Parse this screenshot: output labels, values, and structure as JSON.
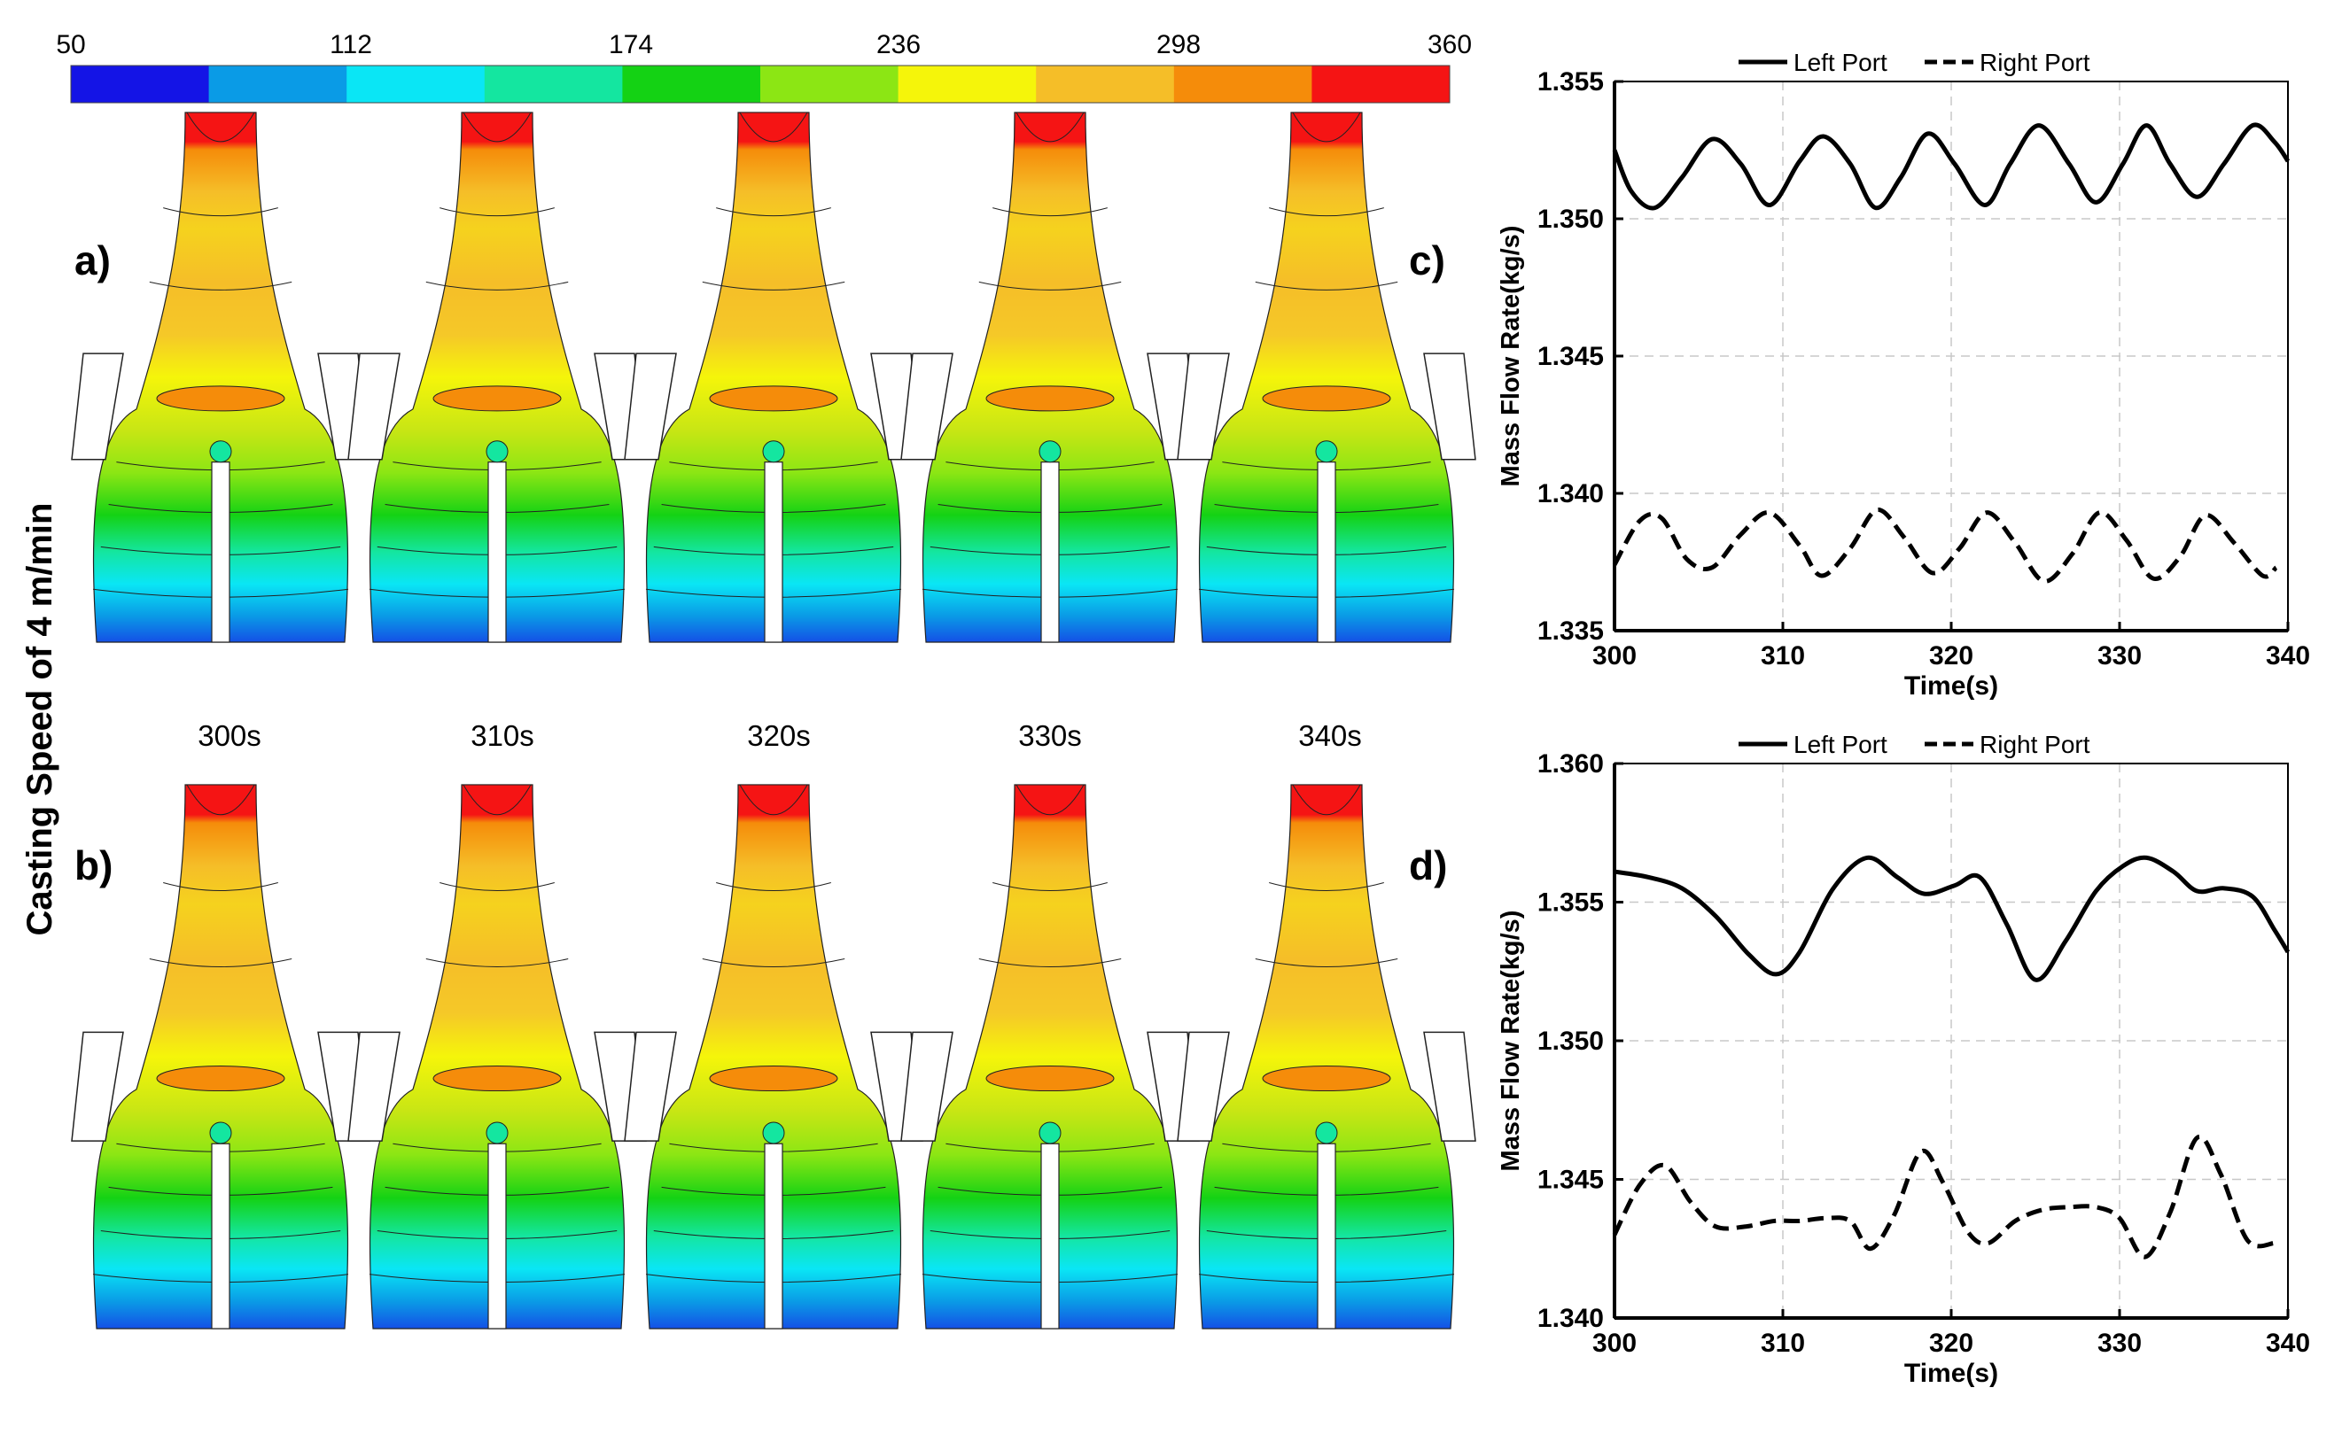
{
  "figure": {
    "side_label": "Casting Speed of 4 m/min",
    "panel_labels": [
      "a)",
      "b)",
      "c)",
      "d)"
    ],
    "time_labels": [
      "300s",
      "310s",
      "320s",
      "330s",
      "340s"
    ]
  },
  "colorbar": {
    "ticks": [
      "50",
      "112",
      "174",
      "236",
      "298",
      "360"
    ],
    "colors": [
      "#1414e6",
      "#0a9be6",
      "#0ae6f5",
      "#14e6a0",
      "#14d214",
      "#8ce614",
      "#f5f50a",
      "#f5be28",
      "#f58c0a",
      "#f51414"
    ]
  },
  "chart_data": [
    {
      "type": "line",
      "panel": "c)",
      "xlabel": "Time(s)",
      "ylabel": "Mass Flow Rate(kg/s)",
      "xlim": [
        300,
        340
      ],
      "ylim": [
        1.335,
        1.355
      ],
      "xticks": [
        300,
        310,
        320,
        330,
        340
      ],
      "yticks": [
        1.335,
        1.34,
        1.345,
        1.35,
        1.355
      ],
      "ytick_labels": [
        "1.335",
        "1.340",
        "1.345",
        "1.350",
        "1.355"
      ],
      "grid": true,
      "legend": "top",
      "series": [
        {
          "name": "Left Port",
          "style": "solid",
          "x": [
            300,
            301,
            302.4,
            304,
            305.8,
            307.5,
            309.2,
            311,
            312.4,
            314,
            315.5,
            317,
            318.6,
            320.2,
            322,
            323.5,
            325.2,
            327,
            328.6,
            330.2,
            331.6,
            333,
            334.6,
            336.2,
            337.9,
            339.2,
            340
          ],
          "y": [
            1.3525,
            1.351,
            1.3504,
            1.3515,
            1.3529,
            1.352,
            1.3505,
            1.3521,
            1.353,
            1.352,
            1.3504,
            1.3515,
            1.3531,
            1.352,
            1.3505,
            1.352,
            1.3534,
            1.352,
            1.3506,
            1.352,
            1.3534,
            1.352,
            1.3508,
            1.352,
            1.3534,
            1.3528,
            1.3521
          ]
        },
        {
          "name": "Right Port",
          "style": "dashed",
          "x": [
            300,
            301.5,
            302.8,
            304.3,
            305.8,
            307.5,
            309.2,
            311,
            312.3,
            314,
            315.6,
            317.2,
            318.9,
            320.5,
            322.1,
            323.8,
            325.5,
            327.2,
            328.8,
            330.4,
            332,
            333.6,
            335.1,
            336.8,
            338.5,
            339.3
          ],
          "y": [
            1.3374,
            1.339,
            1.3391,
            1.3376,
            1.3373,
            1.3385,
            1.3393,
            1.3381,
            1.337,
            1.338,
            1.3394,
            1.3384,
            1.3371,
            1.338,
            1.3393,
            1.3382,
            1.3368,
            1.3378,
            1.3393,
            1.3383,
            1.3369,
            1.3377,
            1.3392,
            1.3382,
            1.337,
            1.3373
          ]
        }
      ]
    },
    {
      "type": "line",
      "panel": "d)",
      "xlabel": "Time(s)",
      "ylabel": "Mass Flow Rate(kg/s)",
      "xlim": [
        300,
        340
      ],
      "ylim": [
        1.34,
        1.36
      ],
      "xticks": [
        300,
        310,
        320,
        330,
        340
      ],
      "yticks": [
        1.34,
        1.345,
        1.35,
        1.355,
        1.36
      ],
      "ytick_labels": [
        "1.340",
        "1.345",
        "1.350",
        "1.355",
        "1.360"
      ],
      "grid": true,
      "legend": "top",
      "series": [
        {
          "name": "Left Port",
          "style": "solid",
          "x": [
            300,
            302,
            304,
            306,
            308,
            309.6,
            311,
            313,
            315,
            316.8,
            318.4,
            320.2,
            321.7,
            323.3,
            325,
            326.8,
            328.6,
            330.2,
            331.6,
            333.2,
            334.6,
            336.2,
            337.9,
            339.2,
            340
          ],
          "y": [
            1.3561,
            1.3559,
            1.3555,
            1.3545,
            1.3531,
            1.3524,
            1.3532,
            1.3555,
            1.3566,
            1.3559,
            1.3553,
            1.3556,
            1.3559,
            1.3542,
            1.3522,
            1.3536,
            1.3554,
            1.3563,
            1.3566,
            1.3561,
            1.3554,
            1.3555,
            1.3552,
            1.354,
            1.3532
          ]
        },
        {
          "name": "Right Port",
          "style": "dashed",
          "x": [
            300,
            301.5,
            303,
            304.5,
            306,
            307.8,
            309.5,
            311,
            312.5,
            314,
            315.2,
            316.6,
            318.2,
            319.5,
            321,
            322.2,
            323.8,
            325.4,
            327,
            328.6,
            330,
            331.5,
            333,
            334.6,
            336,
            337.6,
            339.2
          ],
          "y": [
            1.343,
            1.3448,
            1.3455,
            1.3442,
            1.3433,
            1.3433,
            1.3435,
            1.3435,
            1.3436,
            1.3435,
            1.3425,
            1.3437,
            1.346,
            1.3449,
            1.3431,
            1.3427,
            1.3435,
            1.3439,
            1.344,
            1.344,
            1.3436,
            1.3422,
            1.3438,
            1.3465,
            1.3452,
            1.3428,
            1.3427
          ]
        }
      ]
    }
  ]
}
